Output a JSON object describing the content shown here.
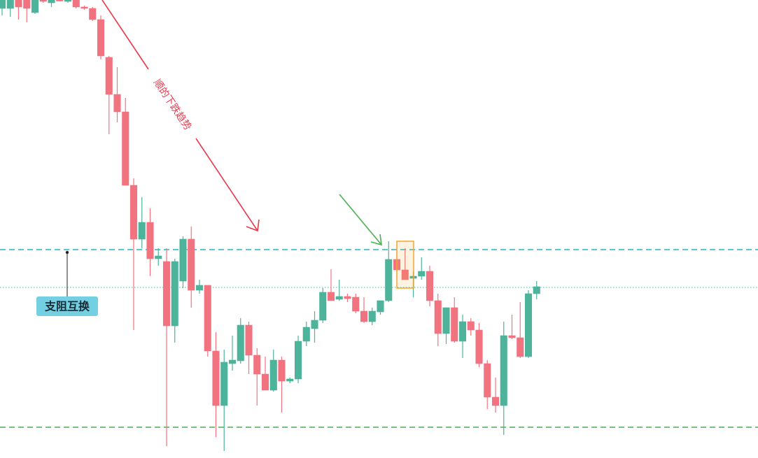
{
  "chart_data": {
    "type": "candlestick",
    "categories": [
      null,
      null,
      null,
      null,
      null,
      null,
      null,
      null,
      null,
      null,
      null,
      null,
      null,
      null,
      null,
      null,
      null,
      null,
      null,
      null,
      null,
      null,
      null,
      null,
      null,
      null,
      null,
      null,
      null,
      null,
      null,
      null,
      null,
      null,
      null,
      null,
      null,
      null,
      null,
      null,
      null,
      null,
      null,
      null,
      null,
      null,
      null,
      null,
      null,
      null,
      null,
      null,
      null,
      null,
      null,
      null,
      null,
      null,
      null,
      null,
      null,
      null,
      null,
      null,
      null,
      null
    ],
    "open": [
      643,
      643,
      655,
      655,
      637,
      655,
      651,
      655,
      653,
      655,
      645,
      643,
      627,
      573,
      520,
      495,
      390,
      313,
      337,
      285,
      281,
      189,
      253,
      313,
      240,
      247,
      153,
      75,
      135,
      139,
      190,
      147,
      120,
      97,
      140,
      110,
      113,
      167,
      185,
      197,
      237,
      227,
      231,
      230,
      210,
      195,
      209,
      225,
      284,
      269,
      257,
      260,
      267,
      225,
      178,
      215,
      167,
      195,
      183,
      135,
      87,
      75,
      175,
      172,
      145,
      235
    ],
    "high": [
      655,
      655,
      655,
      655,
      655,
      655,
      655,
      655,
      655,
      655,
      647,
      645,
      633,
      575,
      559,
      515,
      400,
      373,
      357,
      300,
      300,
      285,
      317,
      331,
      255,
      247,
      180,
      155,
      175,
      200,
      195,
      157,
      145,
      155,
      145,
      115,
      175,
      195,
      210,
      243,
      270,
      255,
      235,
      235,
      230,
      215,
      225,
      310,
      310,
      300,
      267,
      287,
      275,
      235,
      215,
      230,
      205,
      200,
      193,
      140,
      115,
      195,
      205,
      223,
      240,
      253
    ],
    "low": [
      633,
      631,
      627,
      623,
      635,
      651,
      645,
      653,
      651,
      643,
      641,
      625,
      570,
      463,
      480,
      390,
      183,
      300,
      260,
      275,
      17,
      165,
      243,
      215,
      235,
      145,
      30,
      10,
      125,
      135,
      120,
      75,
      97,
      95,
      65,
      107,
      107,
      160,
      165,
      193,
      225,
      225,
      223,
      207,
      193,
      190,
      205,
      223,
      255,
      255,
      230,
      255,
      217,
      160,
      163,
      165,
      143,
      175,
      130,
      70,
      65,
      33,
      170,
      143,
      143,
      227
    ],
    "close": [
      655,
      655,
      645,
      643,
      655,
      653,
      655,
      654,
      655,
      645,
      643,
      627,
      575,
      520,
      495,
      390,
      313,
      337,
      285,
      289,
      189,
      281,
      313,
      240,
      247,
      153,
      75,
      137,
      140,
      190,
      147,
      120,
      97,
      140,
      110,
      113,
      167,
      187,
      197,
      237,
      225,
      231,
      228,
      210,
      195,
      210,
      225,
      284,
      269,
      255,
      260,
      267,
      225,
      178,
      215,
      167,
      195,
      183,
      135,
      87,
      75,
      175,
      172,
      145,
      235,
      245
    ],
    "up_color": "#4db39b",
    "down_color": "#f27380",
    "ylim": [
      0,
      655
    ],
    "hlines": [
      {
        "value": 298,
        "color": "#27b3c3",
        "style": "dashed"
      },
      {
        "value": 244,
        "color": "#4db39b",
        "style": "dotted"
      },
      {
        "value": 44,
        "color": "#4caf50",
        "style": "dashed"
      }
    ],
    "annotations": {
      "trend_text": "顺的下跌趋势",
      "zone_label": "支阻互换"
    }
  }
}
